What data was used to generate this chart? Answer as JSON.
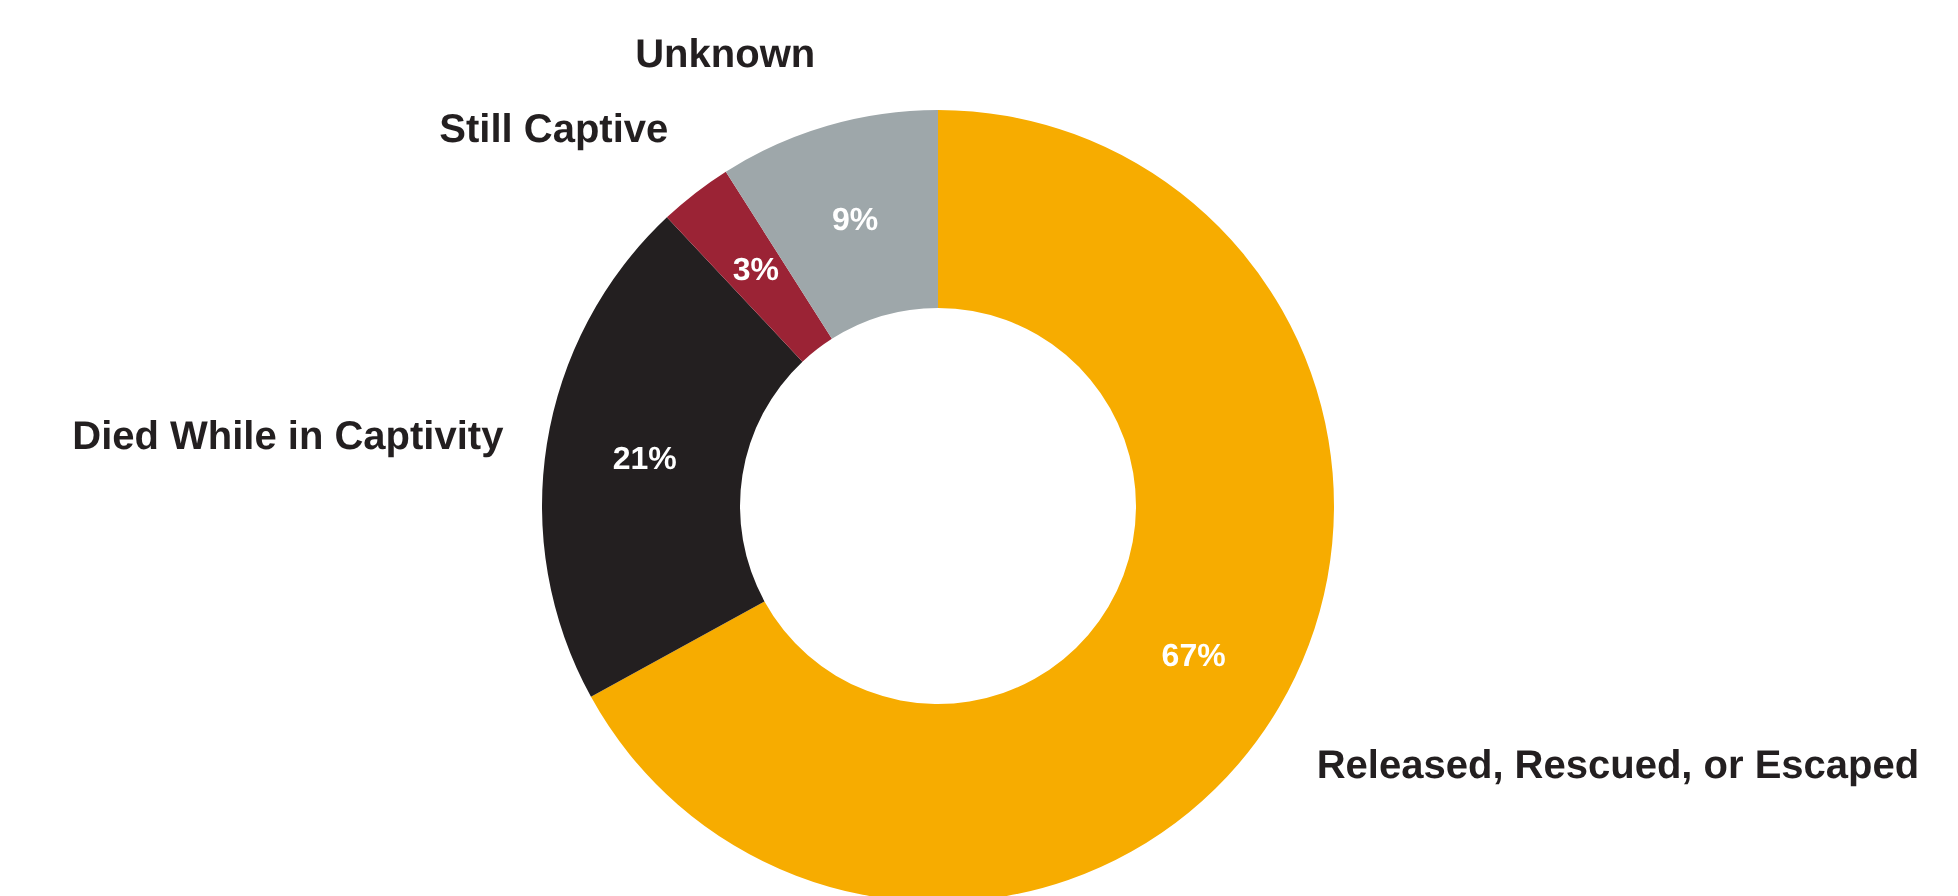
{
  "chart_data": {
    "type": "donut",
    "categories": [
      "Released, Rescued, or Escaped",
      "Died While in Captivity",
      "Still Captive",
      "Unknown"
    ],
    "values": [
      67,
      21,
      3,
      9
    ],
    "value_labels": [
      "67%",
      "21%",
      "3%",
      "9%"
    ],
    "colors": [
      "#f7ac00",
      "#231f20",
      "#9b2335",
      "#9ea7aa"
    ]
  }
}
